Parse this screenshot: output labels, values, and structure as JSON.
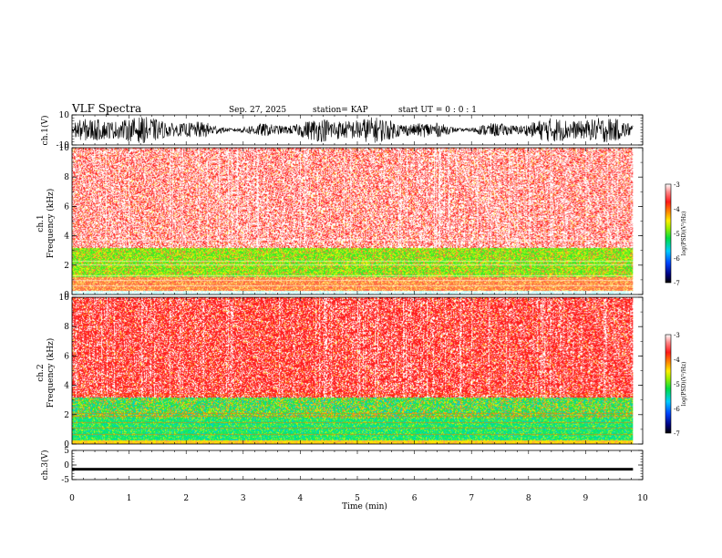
{
  "header": {
    "title": "VLF Spectra",
    "date": "Sep. 27, 2025",
    "station": "station= KAP",
    "start_ut": "start UT =  0 : 0 : 1"
  },
  "chart_data": [
    {
      "type": "line",
      "ylabel": "ch.1(V)",
      "ylim": [
        -10,
        10
      ],
      "yticks": [
        "10",
        "-10"
      ],
      "xlim": [
        0,
        10
      ],
      "note": "dense broadband waveform, amplitude mostly within -8..8 V"
    },
    {
      "type": "heatmap",
      "ylabel_line1": "ch.1",
      "ylabel_line2": "Frequency (kHz)",
      "ylim": [
        0,
        10
      ],
      "yticks": [
        "0",
        "2",
        "4",
        "6",
        "8",
        "10"
      ],
      "xlim": [
        0,
        9.83
      ],
      "colorbar": {
        "label": "log(PSD)(V²/Hz)",
        "range": [
          -7,
          -3
        ],
        "ticks": [
          "-3",
          "-4",
          "-5",
          "-6",
          "-7"
        ]
      },
      "bands": [
        {
          "from_khz": 0,
          "to_khz": 0.3,
          "color": "cyan-white"
        },
        {
          "from_khz": 0.3,
          "to_khz": 1.2,
          "color": "orange-red"
        },
        {
          "from_khz": 1.2,
          "to_khz": 3.2,
          "color": "green-yellow"
        },
        {
          "from_khz": 3.2,
          "to_khz": 10,
          "color": "red-white"
        }
      ]
    },
    {
      "type": "heatmap",
      "ylabel_line1": "ch.2",
      "ylabel_line2": "Frequency (kHz)",
      "ylim": [
        0,
        10
      ],
      "yticks": [
        "0",
        "2",
        "4",
        "6",
        "8",
        "10"
      ],
      "xlim": [
        0,
        9.83
      ],
      "colorbar": {
        "label": "log(PSD)(V²/Hz)",
        "range": [
          -7,
          -3
        ],
        "ticks": [
          "-3",
          "-4",
          "-5",
          "-6",
          "-7"
        ]
      },
      "bands": [
        {
          "from_khz": 0,
          "to_khz": 0.3,
          "color": "yellow"
        },
        {
          "from_khz": 0.3,
          "to_khz": 1.8,
          "color": "green-cyan"
        },
        {
          "from_khz": 1.8,
          "to_khz": 3.2,
          "color": "green-yellow"
        },
        {
          "from_khz": 3.2,
          "to_khz": 10,
          "color": "red"
        }
      ]
    },
    {
      "type": "line",
      "ylabel": "ch.3(V)",
      "ylim": [
        -5,
        5
      ],
      "yticks": [
        "5",
        "0",
        "-5"
      ],
      "xlim": [
        0,
        10
      ],
      "note": "flat dense band around -1.5 V"
    }
  ],
  "xaxis": {
    "label": "Time (min)",
    "range": [
      0,
      10
    ],
    "ticks": [
      "0",
      "1",
      "2",
      "3",
      "4",
      "5",
      "6",
      "7",
      "8",
      "9",
      "10"
    ]
  }
}
